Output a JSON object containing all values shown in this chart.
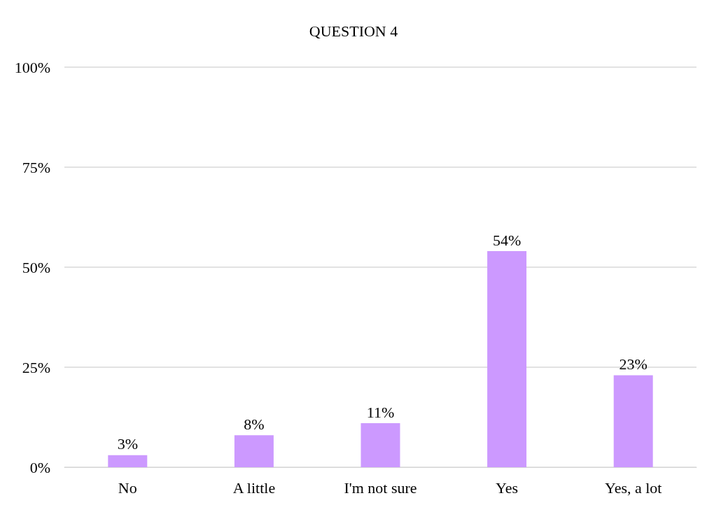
{
  "chart_data": {
    "type": "bar",
    "title": "QUESTION 4",
    "categories": [
      "No",
      "A little",
      "I'm not sure",
      "Yes",
      "Yes, a lot"
    ],
    "values": [
      3,
      8,
      11,
      54,
      23
    ],
    "value_labels": [
      "3%",
      "8%",
      "11%",
      "54%",
      "23%"
    ],
    "color": "#cc99ff",
    "ylim": [
      0,
      100
    ],
    "yticks": [
      {
        "value": 0,
        "label": "0%"
      },
      {
        "value": 25,
        "label": "25%"
      },
      {
        "value": 50,
        "label": "50%"
      },
      {
        "value": 75,
        "label": "75%"
      },
      {
        "value": 100,
        "label": "100%"
      }
    ],
    "grid": "y"
  }
}
